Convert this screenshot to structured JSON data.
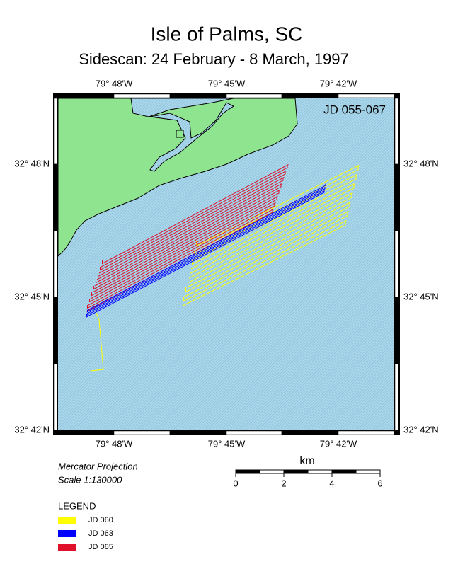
{
  "title": "Isle of Palms, SC",
  "subtitle": "Sidescan: 24 February - 8 March, 1997",
  "map": {
    "label": "JD 055-067",
    "lon_labels": [
      "79° 48'W",
      "79° 45'W",
      "79° 42'W"
    ],
    "lat_labels": [
      "32° 48'N",
      "32° 45'N",
      "32° 42'N"
    ]
  },
  "projection": "Mercator Projection",
  "scale": "Scale 1:130000",
  "scalebar": {
    "unit": "km",
    "ticks": [
      "0",
      "2",
      "4",
      "6"
    ]
  },
  "legend": {
    "title": "LEGEND",
    "items": [
      {
        "name": "JD 060",
        "color": "#ffff00"
      },
      {
        "name": "JD 063",
        "color": "#0000ff"
      },
      {
        "name": "JD 065",
        "color": "#e0102a"
      }
    ]
  }
}
